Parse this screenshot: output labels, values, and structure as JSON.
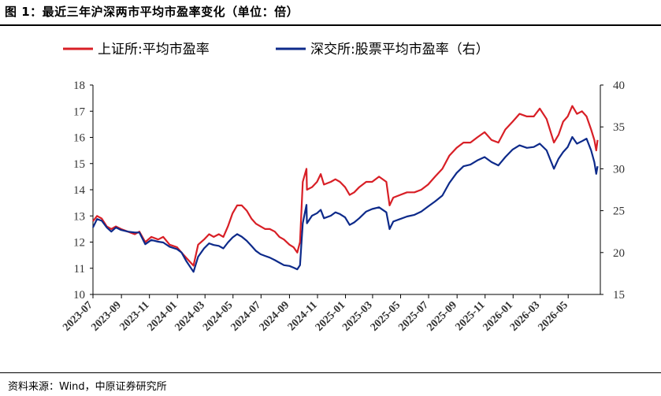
{
  "figure_title": "图 1：最近三年沪深两市平均市盈率变化（单位：倍）",
  "source_note": "资料来源：Wind，中原证券研究所",
  "colors": {
    "shanghai": "#d81f26",
    "shenzhen": "#0d2a8a",
    "axis": "#000000"
  },
  "chart_data": {
    "type": "line",
    "title": "",
    "legend_position": "top",
    "grid": false,
    "x_ticks": [
      "2023-07",
      "2023-09",
      "2023-11",
      "2024-01",
      "2024-03",
      "2024-05",
      "2024-07",
      "2024-09",
      "2024-11",
      "2025-01",
      "2025-03",
      "2025-05",
      "2025-07",
      "2025-09",
      "2025-11",
      "2026-01",
      "2026-03",
      "2026-05"
    ],
    "xlim": [
      "2023-07-01",
      "2026-07-10"
    ],
    "y_left": {
      "lim": [
        10,
        18
      ],
      "ticks": [
        "10",
        "11",
        "12",
        "13",
        "14",
        "15",
        "16",
        "17",
        "18"
      ]
    },
    "y_right": {
      "lim": [
        15,
        40
      ],
      "ticks": [
        "15",
        "20",
        "25",
        "30",
        "35",
        "40"
      ]
    },
    "series": [
      {
        "name": "上证所:平均市盈率",
        "axis": "left",
        "color": "#d81f26",
        "points": [
          [
            "2023-07-01",
            12.8
          ],
          [
            "2023-07-10",
            13.0
          ],
          [
            "2023-07-20",
            12.9
          ],
          [
            "2023-07-31",
            12.6
          ],
          [
            "2023-08-10",
            12.5
          ],
          [
            "2023-08-20",
            12.6
          ],
          [
            "2023-08-31",
            12.5
          ],
          [
            "2023-09-15",
            12.4
          ],
          [
            "2023-09-30",
            12.3
          ],
          [
            "2023-10-10",
            12.4
          ],
          [
            "2023-10-23",
            12.0
          ],
          [
            "2023-11-05",
            12.2
          ],
          [
            "2023-11-20",
            12.1
          ],
          [
            "2023-12-01",
            12.2
          ],
          [
            "2023-12-15",
            11.9
          ],
          [
            "2023-12-31",
            11.8
          ],
          [
            "2024-01-10",
            11.6
          ],
          [
            "2024-01-20",
            11.4
          ],
          [
            "2024-02-05",
            11.1
          ],
          [
            "2024-02-15",
            11.9
          ],
          [
            "2024-02-28",
            12.1
          ],
          [
            "2024-03-10",
            12.3
          ],
          [
            "2024-03-20",
            12.2
          ],
          [
            "2024-03-31",
            12.3
          ],
          [
            "2024-04-10",
            12.2
          ],
          [
            "2024-04-20",
            12.6
          ],
          [
            "2024-04-30",
            13.1
          ],
          [
            "2024-05-10",
            13.4
          ],
          [
            "2024-05-20",
            13.4
          ],
          [
            "2024-05-31",
            13.2
          ],
          [
            "2024-06-10",
            12.9
          ],
          [
            "2024-06-20",
            12.7
          ],
          [
            "2024-06-30",
            12.6
          ],
          [
            "2024-07-10",
            12.5
          ],
          [
            "2024-07-20",
            12.5
          ],
          [
            "2024-07-31",
            12.4
          ],
          [
            "2024-08-10",
            12.2
          ],
          [
            "2024-08-20",
            12.1
          ],
          [
            "2024-09-01",
            11.9
          ],
          [
            "2024-09-10",
            11.8
          ],
          [
            "2024-09-18",
            11.6
          ],
          [
            "2024-09-24",
            12.0
          ],
          [
            "2024-09-30",
            14.3
          ],
          [
            "2024-10-08",
            14.8
          ],
          [
            "2024-10-09",
            14.0
          ],
          [
            "2024-10-20",
            14.1
          ],
          [
            "2024-10-31",
            14.3
          ],
          [
            "2024-11-08",
            14.6
          ],
          [
            "2024-11-15",
            14.2
          ],
          [
            "2024-11-30",
            14.3
          ],
          [
            "2024-12-10",
            14.4
          ],
          [
            "2024-12-20",
            14.3
          ],
          [
            "2024-12-31",
            14.1
          ],
          [
            "2025-01-10",
            13.8
          ],
          [
            "2025-01-20",
            13.9
          ],
          [
            "2025-01-31",
            14.1
          ],
          [
            "2025-02-15",
            14.3
          ],
          [
            "2025-02-28",
            14.3
          ],
          [
            "2025-03-15",
            14.5
          ],
          [
            "2025-03-31",
            14.3
          ],
          [
            "2025-04-07",
            13.4
          ],
          [
            "2025-04-15",
            13.7
          ],
          [
            "2025-04-30",
            13.8
          ],
          [
            "2025-05-15",
            13.9
          ],
          [
            "2025-05-31",
            13.9
          ],
          [
            "2025-06-15",
            14.0
          ],
          [
            "2025-06-30",
            14.2
          ],
          [
            "2025-07-15",
            14.5
          ],
          [
            "2025-07-31",
            14.8
          ],
          [
            "2025-08-15",
            15.3
          ],
          [
            "2025-08-31",
            15.6
          ],
          [
            "2025-09-15",
            15.8
          ],
          [
            "2025-09-30",
            15.8
          ],
          [
            "2025-10-15",
            16.0
          ],
          [
            "2025-10-31",
            16.2
          ],
          [
            "2025-11-15",
            15.9
          ],
          [
            "2025-11-30",
            15.8
          ],
          [
            "2025-12-15",
            16.3
          ],
          [
            "2025-12-31",
            16.6
          ],
          [
            "2026-01-15",
            16.9
          ],
          [
            "2026-01-31",
            16.8
          ],
          [
            "2026-02-15",
            16.8
          ],
          [
            "2026-02-28",
            17.1
          ],
          [
            "2026-03-15",
            16.7
          ],
          [
            "2026-03-31",
            15.8
          ],
          [
            "2026-04-10",
            16.1
          ],
          [
            "2026-04-20",
            16.6
          ],
          [
            "2026-04-30",
            16.8
          ],
          [
            "2026-05-10",
            17.2
          ],
          [
            "2026-05-20",
            16.9
          ],
          [
            "2026-05-31",
            17.0
          ],
          [
            "2026-06-10",
            16.8
          ],
          [
            "2026-06-20",
            16.3
          ],
          [
            "2026-06-27",
            15.9
          ],
          [
            "2026-07-01",
            15.5
          ],
          [
            "2026-07-04",
            15.9
          ]
        ]
      },
      {
        "name": "深交所:股票平均市盈率（右）",
        "axis": "right",
        "color": "#0d2a8a",
        "points": [
          [
            "2023-07-01",
            23.0
          ],
          [
            "2023-07-10",
            24.0
          ],
          [
            "2023-07-20",
            23.8
          ],
          [
            "2023-07-31",
            23.0
          ],
          [
            "2023-08-10",
            22.5
          ],
          [
            "2023-08-20",
            23.0
          ],
          [
            "2023-08-31",
            22.7
          ],
          [
            "2023-09-15",
            22.5
          ],
          [
            "2023-09-30",
            22.4
          ],
          [
            "2023-10-10",
            22.4
          ],
          [
            "2023-10-23",
            21.0
          ],
          [
            "2023-11-05",
            21.5
          ],
          [
            "2023-11-20",
            21.3
          ],
          [
            "2023-12-01",
            21.2
          ],
          [
            "2023-12-15",
            20.7
          ],
          [
            "2023-12-31",
            20.4
          ],
          [
            "2024-01-10",
            20.0
          ],
          [
            "2024-01-20",
            19.0
          ],
          [
            "2024-02-05",
            17.7
          ],
          [
            "2024-02-15",
            19.5
          ],
          [
            "2024-02-28",
            20.5
          ],
          [
            "2024-03-10",
            21.1
          ],
          [
            "2024-03-20",
            20.9
          ],
          [
            "2024-03-31",
            20.8
          ],
          [
            "2024-04-10",
            20.5
          ],
          [
            "2024-04-20",
            21.2
          ],
          [
            "2024-04-30",
            21.8
          ],
          [
            "2024-05-10",
            22.2
          ],
          [
            "2024-05-20",
            21.9
          ],
          [
            "2024-05-31",
            21.4
          ],
          [
            "2024-06-10",
            20.8
          ],
          [
            "2024-06-20",
            20.2
          ],
          [
            "2024-06-30",
            19.8
          ],
          [
            "2024-07-10",
            19.6
          ],
          [
            "2024-07-20",
            19.4
          ],
          [
            "2024-07-31",
            19.1
          ],
          [
            "2024-08-10",
            18.8
          ],
          [
            "2024-08-20",
            18.5
          ],
          [
            "2024-09-01",
            18.4
          ],
          [
            "2024-09-10",
            18.2
          ],
          [
            "2024-09-18",
            18.0
          ],
          [
            "2024-09-24",
            18.5
          ],
          [
            "2024-09-30",
            23.5
          ],
          [
            "2024-10-08",
            25.7
          ],
          [
            "2024-10-09",
            23.5
          ],
          [
            "2024-10-20",
            24.4
          ],
          [
            "2024-10-31",
            24.7
          ],
          [
            "2024-11-08",
            25.1
          ],
          [
            "2024-11-15",
            24.1
          ],
          [
            "2024-11-30",
            24.4
          ],
          [
            "2024-12-10",
            24.8
          ],
          [
            "2024-12-20",
            24.6
          ],
          [
            "2024-12-31",
            24.2
          ],
          [
            "2025-01-10",
            23.3
          ],
          [
            "2025-01-20",
            23.6
          ],
          [
            "2025-01-31",
            24.1
          ],
          [
            "2025-02-15",
            24.9
          ],
          [
            "2025-02-28",
            25.2
          ],
          [
            "2025-03-15",
            25.4
          ],
          [
            "2025-03-31",
            24.8
          ],
          [
            "2025-04-07",
            22.8
          ],
          [
            "2025-04-15",
            23.7
          ],
          [
            "2025-04-30",
            24.0
          ],
          [
            "2025-05-15",
            24.3
          ],
          [
            "2025-05-31",
            24.5
          ],
          [
            "2025-06-15",
            24.9
          ],
          [
            "2025-06-30",
            25.5
          ],
          [
            "2025-07-15",
            26.1
          ],
          [
            "2025-07-31",
            26.8
          ],
          [
            "2025-08-15",
            28.3
          ],
          [
            "2025-08-31",
            29.5
          ],
          [
            "2025-09-15",
            30.3
          ],
          [
            "2025-09-30",
            30.5
          ],
          [
            "2025-10-15",
            31.0
          ],
          [
            "2025-10-31",
            31.4
          ],
          [
            "2025-11-15",
            30.8
          ],
          [
            "2025-11-30",
            30.4
          ],
          [
            "2025-12-15",
            31.4
          ],
          [
            "2025-12-31",
            32.3
          ],
          [
            "2026-01-15",
            32.8
          ],
          [
            "2026-01-31",
            32.5
          ],
          [
            "2026-02-15",
            32.6
          ],
          [
            "2026-02-28",
            33.0
          ],
          [
            "2026-03-15",
            32.2
          ],
          [
            "2026-03-31",
            30.0
          ],
          [
            "2026-04-10",
            31.2
          ],
          [
            "2026-04-20",
            32.0
          ],
          [
            "2026-04-30",
            32.6
          ],
          [
            "2026-05-10",
            33.8
          ],
          [
            "2026-05-20",
            33.0
          ],
          [
            "2026-05-31",
            33.3
          ],
          [
            "2026-06-10",
            33.6
          ],
          [
            "2026-06-20",
            32.2
          ],
          [
            "2026-06-27",
            30.8
          ],
          [
            "2026-07-01",
            29.4
          ],
          [
            "2026-07-04",
            30.3
          ]
        ]
      }
    ]
  }
}
